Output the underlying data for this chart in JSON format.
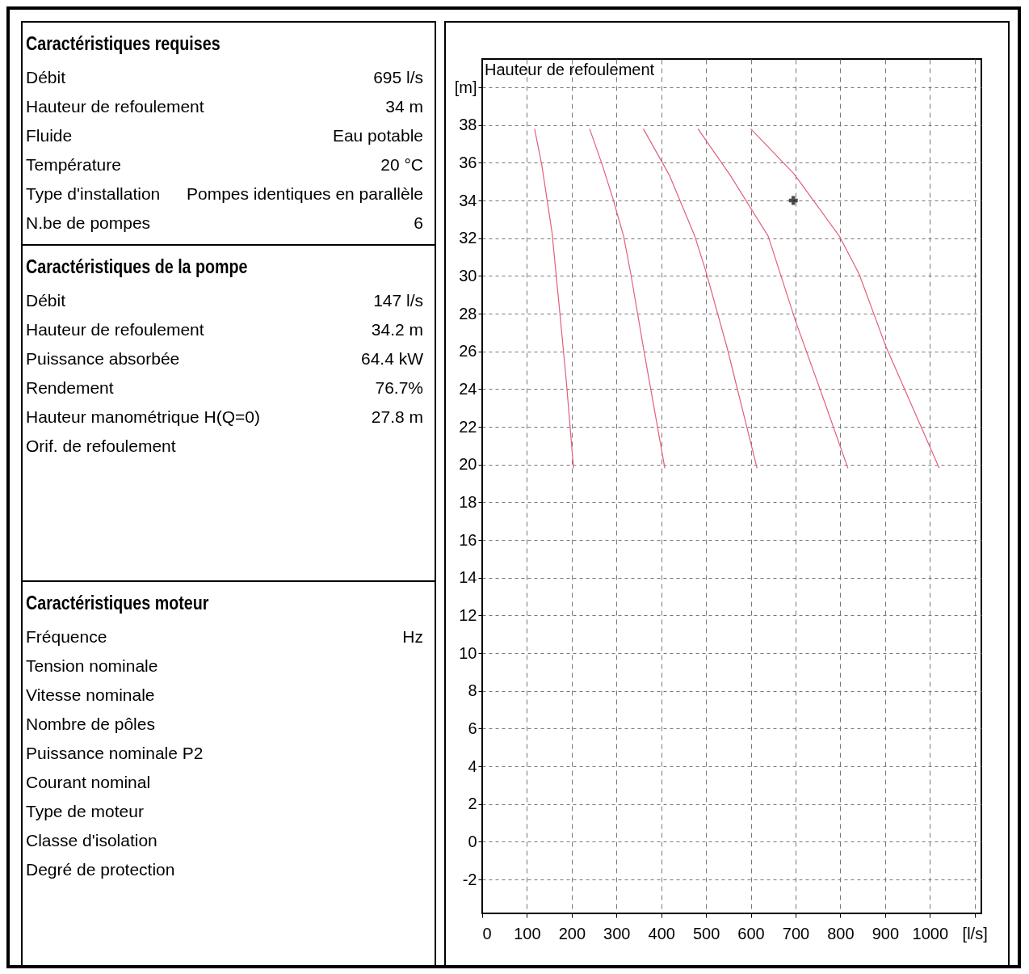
{
  "chart_data": [
    {
      "type": "other",
      "title": "Caractéristiques requises",
      "categories": [
        "Débit",
        "Hauteur de refoulement",
        "Fluide",
        "Température",
        "Type d'installation",
        "N.be de pompes"
      ],
      "value_labels": [
        "695 l/s",
        "34 m",
        "Eau potable",
        "20 °C",
        "Pompes identiques en parallèle",
        "6"
      ]
    },
    {
      "type": "other",
      "title": "Caractéristiques de la pompe",
      "categories": [
        "Débit",
        "Hauteur de refoulement",
        "Puissance absorbée",
        "Rendement",
        "Hauteur manométrique H(Q=0)",
        "Orif. de refoulement"
      ],
      "value_labels": [
        "147 l/s",
        "34.2 m",
        "64.4 kW",
        "76.7%",
        "27.8 m",
        null
      ]
    },
    {
      "type": "other",
      "title": "Caractéristiques moteur",
      "categories": [
        "Fréquence",
        "Tension nominale",
        "Vitesse nominale",
        "Nombre de pôles",
        "Puissance nominale P2",
        "Courant nominal",
        "Type de moteur",
        "Classe d'isolation",
        "Degré de protection"
      ],
      "value_labels": [
        "Hz",
        null,
        null,
        null,
        null,
        null,
        null,
        null,
        null
      ]
    },
    {
      "type": "line",
      "ylabel": "Hauteur de refoulement",
      "grid": true,
      "line_style": "solid",
      "xlim": [
        0,
        1115
      ],
      "ylim": [
        -3.8,
        41.5
      ],
      "xticks": [
        0,
        100,
        200,
        300,
        400,
        500,
        600,
        700,
        800,
        900,
        1000,
        {
          "value": 1100,
          "label": "[l/s]"
        }
      ],
      "yticks": [
        -2,
        0,
        2,
        4,
        6,
        8,
        10,
        12,
        14,
        16,
        18,
        20,
        22,
        24,
        26,
        28,
        30,
        32,
        34,
        36,
        38,
        {
          "value": 40,
          "label": "[m]"
        }
      ],
      "series": [
        {
          "color": "#e0607a",
          "x": [
            117,
            133,
            156,
            172,
            188,
            204
          ],
          "values": [
            37.8,
            35.9,
            32.3,
            28.4,
            24.4,
            19.8
          ]
        },
        {
          "color": "#e0607a",
          "x": [
            240,
            268,
            292,
            316,
            332,
            363,
            408
          ],
          "values": [
            37.8,
            35.9,
            34.1,
            32.1,
            30.1,
            25.8,
            19.8
          ]
        },
        {
          "color": "#e0607a",
          "x": [
            360,
            419,
            475,
            499,
            547,
            614
          ],
          "values": [
            37.8,
            35.3,
            32.1,
            30.3,
            26.2,
            19.8
          ]
        },
        {
          "color": "#e0607a",
          "x": [
            482,
            555,
            639,
            700,
            762,
            817
          ],
          "values": [
            37.8,
            35.3,
            32.1,
            27.6,
            23.5,
            19.8
          ]
        },
        {
          "color": "#e0607a",
          "x": [
            600,
            697,
            798,
            842,
            901,
            1021
          ],
          "values": [
            37.8,
            35.4,
            32.1,
            30.1,
            26.3,
            19.8
          ]
        },
        {
          "type": "scatter",
          "marker": "cross",
          "color": "#000000",
          "x": [
            695
          ],
          "values": [
            34
          ]
        }
      ]
    }
  ]
}
